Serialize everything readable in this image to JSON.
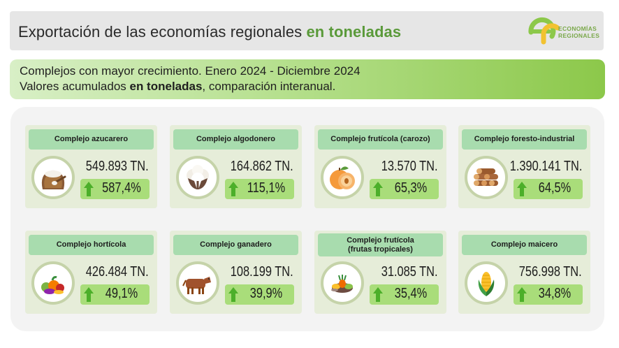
{
  "header": {
    "title_prefix": "Exportación de las economías regionales ",
    "title_highlight": "en toneladas",
    "logo_line1": "ECONOMÍAS",
    "logo_line2": "REGIONALES"
  },
  "subtitle": {
    "line1": "Complejos con mayor crecimiento. Enero 2024 - Diciembre 2024",
    "line2_prefix": "Valores acumulados ",
    "line2_bold": "en toneladas",
    "line2_suffix": ", comparación interanual."
  },
  "colors": {
    "accent_green": "#5a9a3a",
    "card_bg": "#e6edd9",
    "card_title_bg": "#a8dcae",
    "growth_bg": "#a9dd7a",
    "arrow_green": "#4caf2a"
  },
  "cards": [
    {
      "title": "Complejo azucarero",
      "tonnage": "549.893 TN.",
      "growth": "587,4%",
      "icon": "sugar-sack-icon"
    },
    {
      "title": "Complejo algodonero",
      "tonnage": "164.862 TN.",
      "growth": "115,1%",
      "icon": "cotton-icon"
    },
    {
      "title": "Complejo frutícola (carozo)",
      "tonnage": "13.570 TN.",
      "growth": "65,3%",
      "icon": "peach-icon"
    },
    {
      "title": "Complejo foresto-industrial",
      "tonnage": "1.390.141 TN.",
      "growth": "64,5%",
      "icon": "logs-icon"
    },
    {
      "title": "Complejo hortícola",
      "tonnage": "426.484 TN.",
      "growth": "49,1%",
      "icon": "vegetables-icon"
    },
    {
      "title": "Complejo ganadero",
      "tonnage": "108.199 TN.",
      "growth": "39,9%",
      "icon": "cow-icon"
    },
    {
      "title_line1": "Complejo frutícola",
      "title_line2": "(frutas tropicales)",
      "tonnage": "31.085 TN.",
      "growth": "35,4%",
      "icon": "tropical-fruits-icon"
    },
    {
      "title": "Complejo maicero",
      "tonnage": "756.998 TN.",
      "growth": "34,8%",
      "icon": "corn-icon"
    }
  ]
}
